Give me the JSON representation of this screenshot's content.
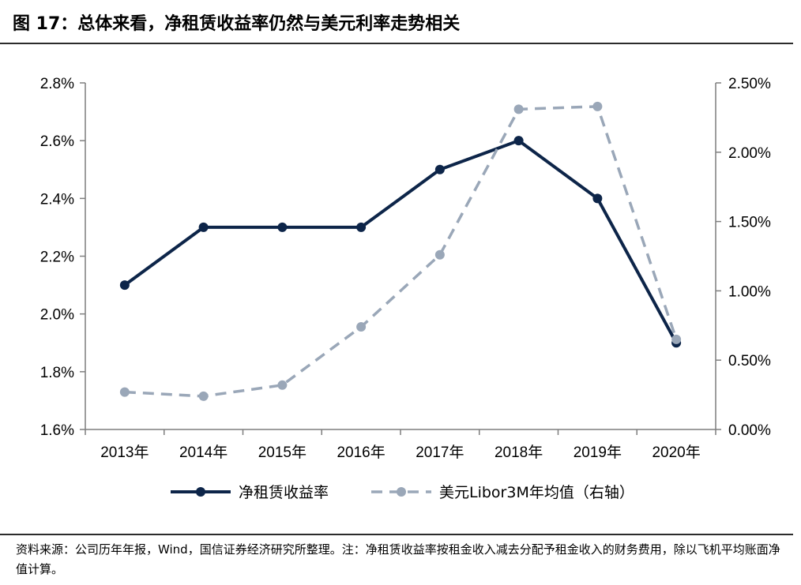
{
  "title": "图 17：总体来看，净租赁收益率仍然与美元利率走势相关",
  "note": "资料来源：公司历年年报，Wind，国信证券经济研究所整理。注：净租赁收益率按租金收入减去分配予租金收入的财务费用，除以飞机平均账面净值计算。",
  "chart_data": {
    "type": "line",
    "title": "",
    "categories": [
      "2013年",
      "2014年",
      "2015年",
      "2016年",
      "2017年",
      "2018年",
      "2019年",
      "2020年"
    ],
    "series": [
      {
        "name": "净租赁收益率",
        "axis": "left",
        "values": [
          2.1,
          2.3,
          2.3,
          2.3,
          2.5,
          2.6,
          2.4,
          1.9
        ],
        "style": "solid",
        "color": "#0d2549"
      },
      {
        "name": "美元Libor3M年均值（右轴）",
        "axis": "right",
        "values": [
          0.27,
          0.24,
          0.32,
          0.74,
          1.26,
          2.31,
          2.33,
          0.65
        ],
        "style": "dashed",
        "color": "#9aa7b8"
      }
    ],
    "left_axis": {
      "ylim": [
        1.6,
        2.8
      ],
      "ticks": [
        1.6,
        1.8,
        2.0,
        2.2,
        2.4,
        2.6,
        2.8
      ],
      "tick_labels": [
        "1.6%",
        "1.8%",
        "2.0%",
        "2.2%",
        "2.4%",
        "2.6%",
        "2.8%"
      ]
    },
    "right_axis": {
      "ylim": [
        0.0,
        2.5
      ],
      "ticks": [
        0.0,
        0.5,
        1.0,
        1.5,
        2.0,
        2.5
      ],
      "tick_labels": [
        "0.00%",
        "0.50%",
        "1.00%",
        "1.50%",
        "2.00%",
        "2.50%"
      ]
    },
    "grid": false,
    "legend": "bottom"
  }
}
